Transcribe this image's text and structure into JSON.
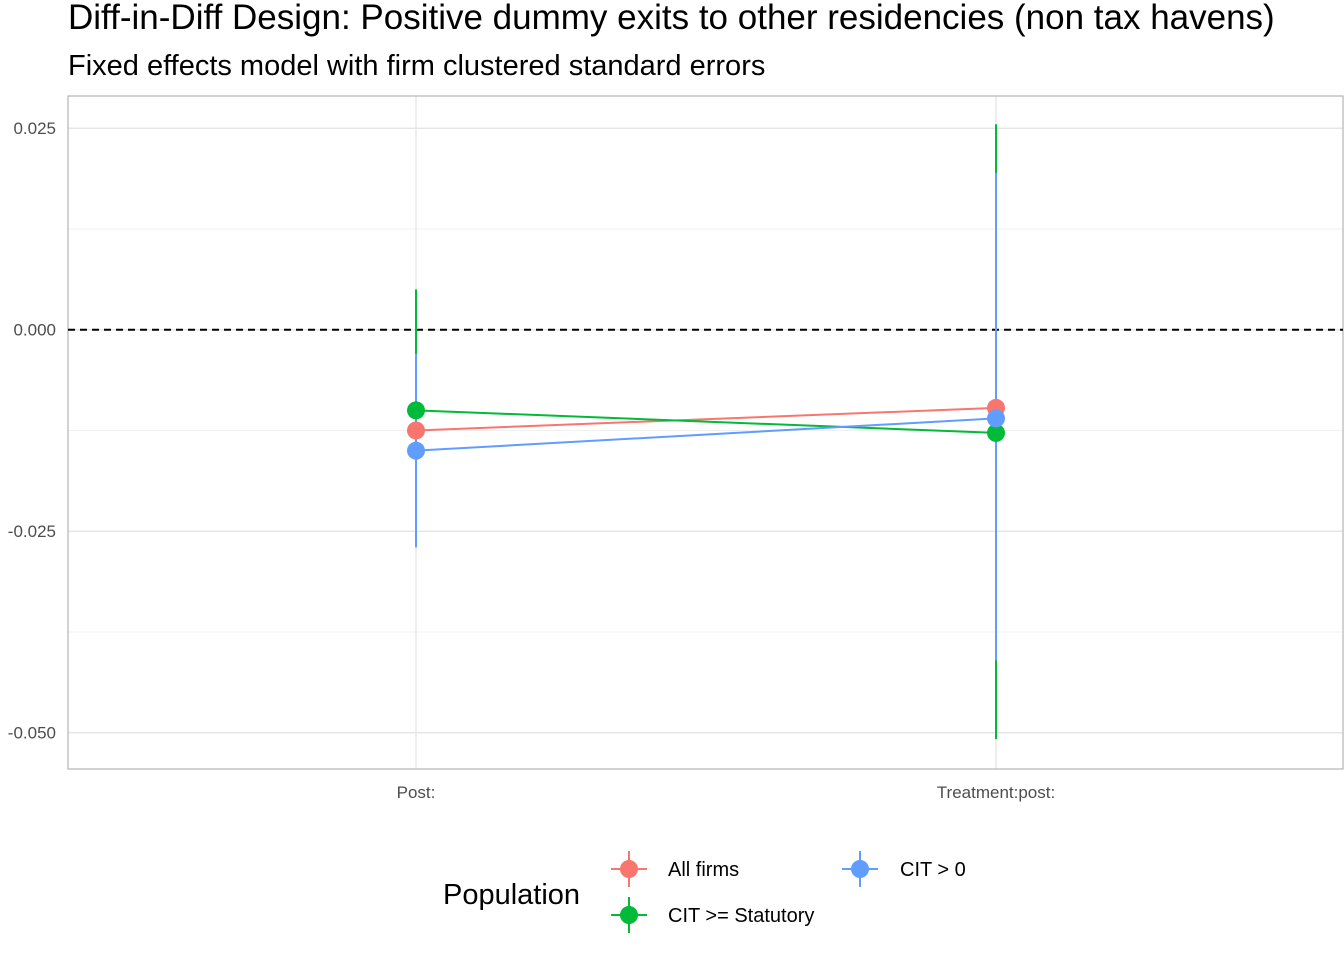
{
  "chart_data": {
    "type": "scatter",
    "title": "Diff-in-Diff Design: Positive dummy exits to other residencies (non tax havens)",
    "subtitle": "Fixed effects model with firm clustered standard errors",
    "xlabel": "",
    "ylabel": "",
    "categories": [
      "Post:",
      "Treatment:post:"
    ],
    "ylim": [
      -0.0545,
      0.029
    ],
    "y_ticks": [
      0.025,
      0.0,
      -0.025,
      -0.05
    ],
    "y_tick_labels": [
      "0.025",
      "0.000",
      "-0.025",
      "-0.050"
    ],
    "reference_line": 0,
    "grid": true,
    "legend": {
      "title": "Population",
      "placement": "bottom"
    },
    "series": [
      {
        "name": "All firms",
        "color": "#F8766D",
        "values": [
          -0.0125,
          -0.0097
        ],
        "lower": [
          -0.0125,
          -0.0097
        ],
        "upper": [
          -0.0125,
          -0.0097
        ]
      },
      {
        "name": "CIT >= Statutory",
        "color": "#00BA38",
        "values": [
          -0.01,
          -0.0128
        ],
        "lower": [
          -0.01,
          -0.0508
        ],
        "upper": [
          0.005,
          0.0255
        ]
      },
      {
        "name": "CIT > 0",
        "color": "#619CFF",
        "values": [
          -0.015,
          -0.011
        ],
        "lower": [
          -0.027,
          -0.041
        ],
        "upper": [
          -0.003,
          0.0195
        ]
      }
    ]
  }
}
